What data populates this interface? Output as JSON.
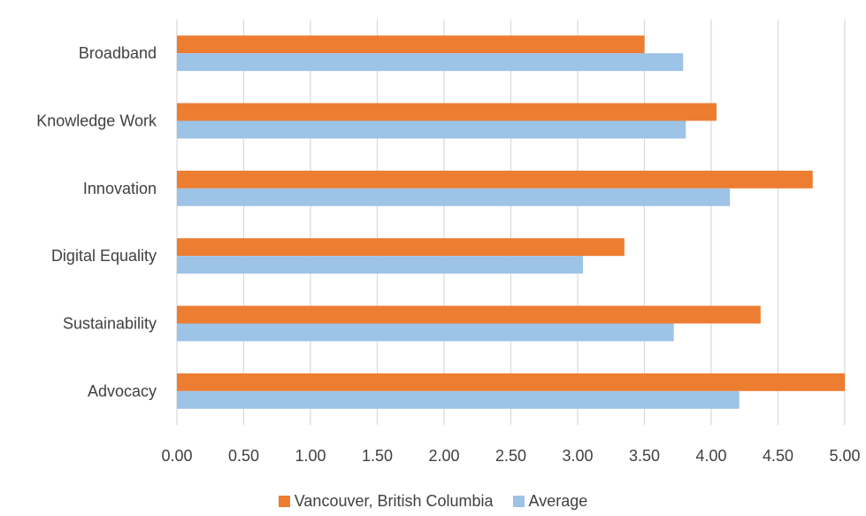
{
  "chart_data": {
    "type": "bar",
    "orientation": "horizontal",
    "categories": [
      "Broadband",
      "Knowledge Work",
      "Innovation",
      "Digital Equality",
      "Sustainability",
      "Advocacy"
    ],
    "series": [
      {
        "name": "Vancouver, British Columbia",
        "color": "#ED7D31",
        "values": [
          3.5,
          4.04,
          4.76,
          3.35,
          4.37,
          5.0
        ]
      },
      {
        "name": "Average",
        "color": "#9DC3E6",
        "values": [
          3.79,
          3.81,
          4.14,
          3.04,
          3.72,
          4.21
        ]
      }
    ],
    "x_ticks": [
      "0.00",
      "0.50",
      "1.00",
      "1.50",
      "2.00",
      "2.50",
      "3.00",
      "3.50",
      "4.00",
      "4.50",
      "5.00"
    ],
    "xlim": [
      0,
      5
    ],
    "title": "",
    "xlabel": "",
    "ylabel": "",
    "grid": "vertical",
    "legend": "bottom"
  }
}
